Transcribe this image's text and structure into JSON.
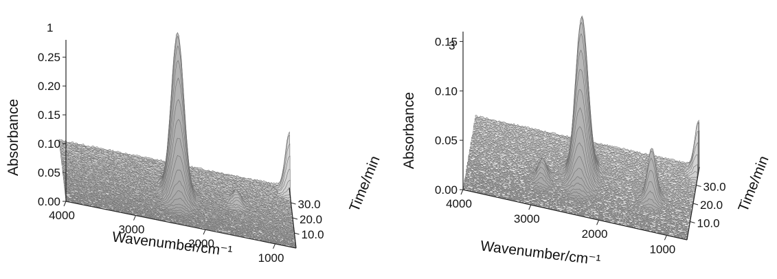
{
  "chart_data": [
    {
      "type": "area",
      "panel_label": "1",
      "xlabel": "Wavenumber/cm⁻¹",
      "ylabel": "Time/min",
      "zlabel": "Absorbance",
      "x_ticks": [
        "4000",
        "3000",
        "2000",
        "1000"
      ],
      "y_ticks": [
        "10.0",
        "20.0",
        "30.0"
      ],
      "z_ticks": [
        "0.00",
        "0.05",
        "0.10",
        "0.15",
        "0.20",
        "0.25"
      ],
      "xlim": [
        4000,
        700
      ],
      "ylim": [
        0,
        40
      ],
      "zlim": [
        0,
        0.28
      ],
      "series": [
        {
          "x": 2350,
          "peak": 0.28,
          "peak_time": 20
        },
        {
          "x": 1500,
          "peak": 0.02,
          "peak_time": 22
        },
        {
          "x": 700,
          "peak": 0.1,
          "peak_time": 38
        }
      ]
    },
    {
      "type": "area",
      "panel_label": "3",
      "xlabel": "Wavenumber/cm⁻¹",
      "ylabel": "Time/min",
      "zlabel": "Absorbance",
      "x_ticks": [
        "4000",
        "3000",
        "2000",
        "1000"
      ],
      "y_ticks": [
        "10.0",
        "20.0",
        "30.0"
      ],
      "z_ticks": [
        "0.00",
        "0.05",
        "0.10",
        "0.15"
      ],
      "xlim": [
        4000,
        700
      ],
      "ylim": [
        0,
        40
      ],
      "zlim": [
        0,
        0.16
      ],
      "series": [
        {
          "x": 2350,
          "peak": 0.16,
          "peak_time": 22
        },
        {
          "x": 2900,
          "peak": 0.02,
          "peak_time": 15
        },
        {
          "x": 1300,
          "peak": 0.05,
          "peak_time": 18
        },
        {
          "x": 700,
          "peak": 0.05,
          "peak_time": 38
        }
      ]
    }
  ]
}
